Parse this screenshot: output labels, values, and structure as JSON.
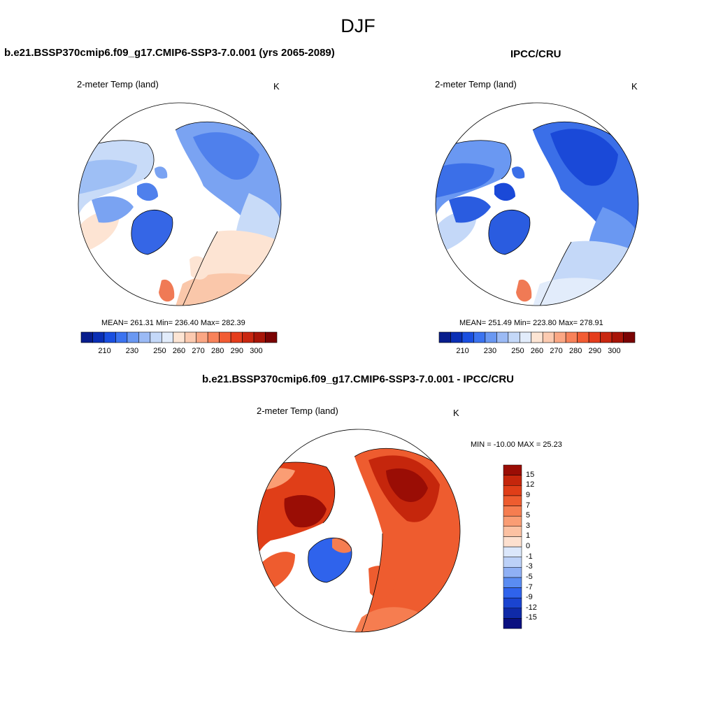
{
  "page": {
    "title": "DJF",
    "subtitle_diff": "b.e21.BSSP370cmip6.f09_g17.CMIP6-SSP3-7.0.001 - IPCC/CRU",
    "diff_range_text": "MIN = -10.00 MAX =  25.23"
  },
  "panels": [
    {
      "title": "b.e21.BSSP370cmip6.f09_g17.CMIP6-SSP3-7.0.001 (yrs 2065-2089)",
      "variable": "2-meter Temp (land)",
      "units": "K",
      "stats": "MEAN= 261.31  Min= 236.40  Max= 282.39",
      "mean": 261.31,
      "min": 236.4,
      "max": 282.39
    },
    {
      "title": "IPCC/CRU",
      "variable": "2-meter Temp (land)",
      "units": "K",
      "stats": "MEAN= 251.49  Min= 223.80  Max= 278.91",
      "mean": 251.49,
      "min": 223.8,
      "max": 278.91
    },
    {
      "title": "",
      "variable": "2-meter Temp (land)",
      "units": "K",
      "min": -10.0,
      "max": 25.23
    }
  ],
  "colorbar_abs": {
    "colors": [
      "#081d8c",
      "#0a2fb5",
      "#1a4fe0",
      "#3b73f0",
      "#6a98f2",
      "#9bbaf5",
      "#c4d8f8",
      "#e2ecfb",
      "#fde5d4",
      "#fccab0",
      "#fba784",
      "#f8825a",
      "#f25c33",
      "#e53d1c",
      "#c92710",
      "#a81508",
      "#7a0303"
    ],
    "ticks": [
      "210",
      "230",
      "250",
      "260",
      "270",
      "280",
      "290",
      "300"
    ]
  },
  "colorbar_diff": {
    "colors": [
      "#0a1080",
      "#0f2aa8",
      "#1a44d0",
      "#2f63ec",
      "#5a8cf2",
      "#8fb0f5",
      "#bcd1f8",
      "#dbe7fb",
      "#fde0cf",
      "#fcc1a2",
      "#fa9d74",
      "#f67d50",
      "#ee5c2f",
      "#e03e18",
      "#c5260c",
      "#9a0d05"
    ],
    "ticks": [
      "15",
      "12",
      "9",
      "7",
      "5",
      "3",
      "1",
      "0",
      "-1",
      "-3",
      "-5",
      "-7",
      "-9",
      "-12",
      "-15"
    ]
  }
}
